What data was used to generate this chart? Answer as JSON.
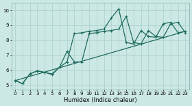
{
  "xlabel": "Humidex (Indice chaleur)",
  "bg_color": "#cce8e4",
  "line_color": "#1e6b60",
  "grid_color": "#aacfcc",
  "xlim": [
    -0.5,
    23.5
  ],
  "ylim": [
    4.7,
    10.5
  ],
  "xticks": [
    0,
    1,
    2,
    3,
    4,
    5,
    6,
    7,
    8,
    9,
    10,
    11,
    12,
    13,
    14,
    15,
    16,
    17,
    18,
    19,
    20,
    21,
    22,
    23
  ],
  "yticks": [
    5,
    6,
    7,
    8,
    9,
    10
  ],
  "line1_x": [
    0,
    1,
    2,
    3,
    4,
    5,
    6,
    7,
    8,
    9,
    10,
    11,
    12,
    13,
    14,
    15,
    16,
    17,
    18,
    19,
    20,
    21,
    22,
    23
  ],
  "line1_y": [
    5.3,
    5.1,
    5.75,
    5.95,
    5.85,
    5.75,
    6.2,
    6.55,
    8.45,
    8.5,
    8.6,
    8.65,
    8.75,
    9.5,
    10.1,
    7.85,
    7.75,
    8.65,
    8.25,
    8.2,
    9.1,
    9.2,
    8.5,
    8.6
  ],
  "line2_x": [
    0,
    1,
    2,
    3,
    4,
    5,
    6,
    7,
    8,
    9,
    10,
    11,
    12,
    13,
    14,
    15,
    16,
    17,
    18,
    19,
    20,
    21,
    22,
    23
  ],
  "line2_y": [
    5.3,
    5.1,
    5.75,
    5.95,
    5.85,
    5.7,
    6.2,
    7.25,
    6.55,
    6.55,
    8.45,
    8.5,
    8.6,
    8.65,
    8.75,
    9.6,
    7.85,
    7.75,
    8.65,
    8.25,
    8.2,
    9.1,
    9.2,
    8.5
  ],
  "line3_x": [
    0,
    23
  ],
  "line3_y": [
    5.3,
    8.6
  ],
  "markersize": 3,
  "linewidth": 0.9
}
